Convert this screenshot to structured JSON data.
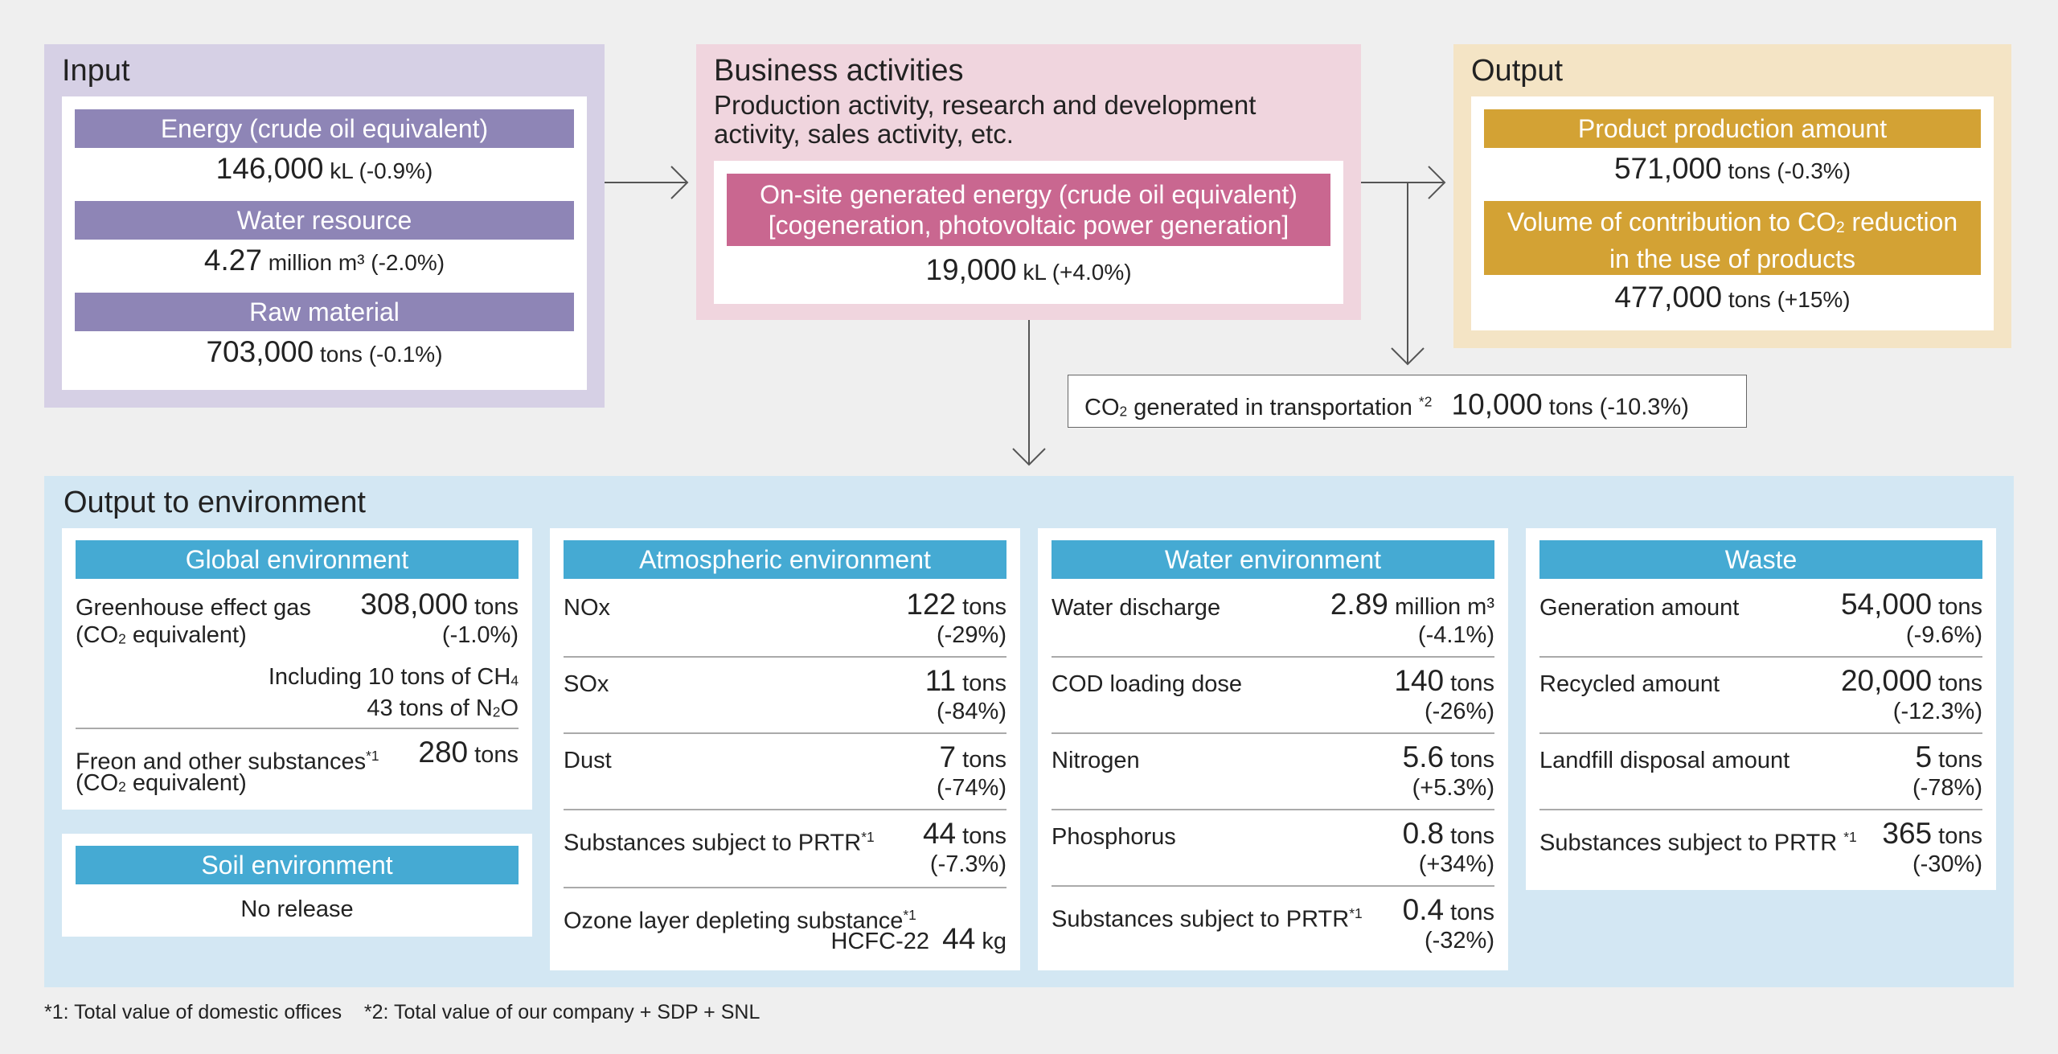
{
  "input": {
    "title": "Input",
    "items": [
      {
        "label": "Energy (crude oil equivalent)",
        "value": "146,000",
        "unit": "kL",
        "change": "(-0.9%)"
      },
      {
        "label": "Water resource",
        "value": "4.27",
        "unit": "million m³",
        "change": "(-2.0%)"
      },
      {
        "label": "Raw material",
        "value": "703,000",
        "unit": "tons",
        "change": "(-0.1%)"
      }
    ]
  },
  "business": {
    "title": "Business activities",
    "description": "Production activity, research and development activity, sales activity, etc.",
    "onsite_label_1": "On-site generated energy (crude oil equivalent)",
    "onsite_label_2": "[cogeneration, photovoltaic power generation]",
    "onsite_value": "19,000",
    "onsite_unit": "kL",
    "onsite_change": "(+4.0%)"
  },
  "output": {
    "title": "Output",
    "product_label": "Product production amount",
    "product_value": "571,000",
    "product_unit": "tons",
    "product_change": "(-0.3%)",
    "contrib_label_1": "Volume of contribution to CO",
    "contrib_label_1_sub": "2",
    "contrib_label_1_end": " reduction",
    "contrib_label_2": "in the use of products",
    "contrib_value": "477,000",
    "contrib_unit": "tons",
    "contrib_change": "(+15%)"
  },
  "transport": {
    "label_pre": "CO",
    "label_sub": "2",
    "label_post": " generated in transportation ",
    "note": "*2",
    "value": "10,000",
    "unit": "tons",
    "change": "(-10.3%)"
  },
  "environment": {
    "title": "Output to environment",
    "global": {
      "header": "Global environment",
      "ghg_label_1": "Greenhouse effect gas",
      "ghg_label_2_pre": "(CO",
      "ghg_label_2_sub": "2",
      "ghg_label_2_post": " equivalent)",
      "ghg_value": "308,000",
      "ghg_unit": "tons",
      "ghg_change": "(-1.0%)",
      "incl_1_pre": "Including 10 tons of CH",
      "incl_1_sub": "4",
      "incl_2_pre": "43 tons of N",
      "incl_2_sub": "2",
      "incl_2_post": "O",
      "freon_label_1": "Freon and other substances",
      "freon_note": "*1",
      "freon_label_2_pre": "(CO",
      "freon_label_2_sub": "2",
      "freon_label_2_post": " equivalent)",
      "freon_value": "280",
      "freon_unit": "tons"
    },
    "soil": {
      "header": "Soil environment",
      "text": "No release"
    },
    "atmospheric": {
      "header": "Atmospheric environment",
      "rows": [
        {
          "label": "NOx",
          "value": "122",
          "unit": "tons",
          "change": "(-29%)"
        },
        {
          "label": "SOx",
          "value": "11",
          "unit": "tons",
          "change": "(-84%)"
        },
        {
          "label": "Dust",
          "value": "7",
          "unit": "tons",
          "change": "(-74%)"
        },
        {
          "label": "Substances subject to PRTR",
          "note": "*1",
          "value": "44",
          "unit": "tons",
          "change": "(-7.3%)"
        }
      ],
      "ozone_label": "Ozone layer depleting substance",
      "ozone_note": "*1",
      "ozone_sub_label": "HCFC-22",
      "ozone_value": "44",
      "ozone_unit": "kg"
    },
    "water": {
      "header": "Water environment",
      "rows": [
        {
          "label": "Water discharge",
          "value": "2.89",
          "unit": "million m³",
          "change": "(-4.1%)"
        },
        {
          "label": "COD loading dose",
          "value": "140",
          "unit": "tons",
          "change": "(-26%)"
        },
        {
          "label": "Nitrogen",
          "value": "5.6",
          "unit": "tons",
          "change": "(+5.3%)"
        },
        {
          "label": "Phosphorus",
          "value": "0.8",
          "unit": "tons",
          "change": "(+34%)"
        },
        {
          "label": "Substances subject to PRTR",
          "note": "*1",
          "value": "0.4",
          "unit": "tons",
          "change": "(-32%)"
        }
      ]
    },
    "waste": {
      "header": "Waste",
      "rows": [
        {
          "label": "Generation amount",
          "value": "54,000",
          "unit": "tons",
          "change": "(-9.6%)"
        },
        {
          "label": "Recycled amount",
          "value": "20,000",
          "unit": "tons",
          "change": "(-12.3%)"
        },
        {
          "label": "Landfill disposal amount",
          "value": "5",
          "unit": "tons",
          "change": "(-78%)"
        },
        {
          "label": "Substances subject to PRTR ",
          "note": "*1",
          "value": "365",
          "unit": "tons",
          "change": "(-30%)"
        }
      ]
    }
  },
  "footnotes": {
    "f1": "*1: Total value of domestic offices",
    "f2": "*2: Total value of our company + SDP + SNL"
  },
  "colors": {
    "input_bg": "#d6d0e5",
    "input_bar": "#8e85b6",
    "business_bg": "#f0d5de",
    "business_bar": "#c96790",
    "output_bg": "#f4e4c5",
    "output_bar": "#d3a234",
    "env_bg": "#d3e7f3",
    "env_bar": "#45aad3"
  }
}
